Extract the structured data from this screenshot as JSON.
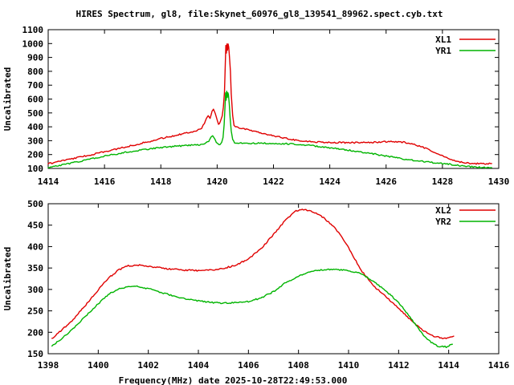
{
  "title": "HIRES Spectrum, gl8, file:Skynet_60976_gl8_139541_89962.spect.cyb.txt",
  "xlabel": "Frequency(MHz) date 2025-10-28T22:49:53.000",
  "colors": {
    "xl_line": "#e00000",
    "yr_line": "#00b400",
    "axis": "#000000",
    "background": "#ffffff"
  },
  "chart_data": [
    {
      "type": "line",
      "panel": "top",
      "ylabel": "Uncalibrated",
      "x_range": [
        1414,
        1430
      ],
      "y_range": [
        100,
        1100
      ],
      "x_ticks": [
        1414,
        1416,
        1418,
        1420,
        1422,
        1424,
        1426,
        1428,
        1430
      ],
      "y_ticks": [
        100,
        200,
        300,
        400,
        500,
        600,
        700,
        800,
        900,
        1000,
        1100
      ],
      "grid": false,
      "legend_position": "top-right-inside",
      "series": [
        {
          "name": "XL1",
          "color": "#e00000",
          "points": [
            [
              1414.0,
              133
            ],
            [
              1414.4,
              152
            ],
            [
              1414.8,
              168
            ],
            [
              1415.2,
              185
            ],
            [
              1415.6,
              202
            ],
            [
              1416,
              220
            ],
            [
              1416.5,
              243
            ],
            [
              1417,
              267
            ],
            [
              1417.5,
              290
            ],
            [
              1418,
              315
            ],
            [
              1418.5,
              338
            ],
            [
              1419,
              360
            ],
            [
              1419.3,
              375
            ],
            [
              1419.45,
              392
            ],
            [
              1419.55,
              425
            ],
            [
              1419.62,
              462
            ],
            [
              1419.68,
              477
            ],
            [
              1419.75,
              460
            ],
            [
              1419.82,
              510
            ],
            [
              1419.87,
              522
            ],
            [
              1419.93,
              495
            ],
            [
              1420.0,
              445
            ],
            [
              1420.05,
              422
            ],
            [
              1420.12,
              438
            ],
            [
              1420.18,
              475
            ],
            [
              1420.22,
              540
            ],
            [
              1420.26,
              650
            ],
            [
              1420.29,
              850
            ],
            [
              1420.31,
              985
            ],
            [
              1420.33,
              930
            ],
            [
              1420.35,
              1000
            ],
            [
              1420.37,
              955
            ],
            [
              1420.39,
              1000
            ],
            [
              1420.41,
              975
            ],
            [
              1420.44,
              900
            ],
            [
              1420.47,
              800
            ],
            [
              1420.5,
              640
            ],
            [
              1420.55,
              480
            ],
            [
              1420.6,
              410
            ],
            [
              1420.7,
              396
            ],
            [
              1421,
              385
            ],
            [
              1421.5,
              360
            ],
            [
              1422,
              335
            ],
            [
              1422.5,
              315
            ],
            [
              1423,
              298
            ],
            [
              1423.5,
              291
            ],
            [
              1424,
              288
            ],
            [
              1424.5,
              286
            ],
            [
              1425,
              286
            ],
            [
              1425.5,
              287
            ],
            [
              1426,
              293
            ],
            [
              1426.3,
              292
            ],
            [
              1426.7,
              287
            ],
            [
              1427,
              272
            ],
            [
              1427.4,
              246
            ],
            [
              1427.8,
              210
            ],
            [
              1428.2,
              172
            ],
            [
              1428.5,
              152
            ],
            [
              1428.8,
              140
            ],
            [
              1429.2,
              135
            ],
            [
              1429.75,
              135
            ]
          ]
        },
        {
          "name": "YR1",
          "color": "#00b400",
          "points": [
            [
              1414.0,
              106
            ],
            [
              1414.4,
              122
            ],
            [
              1414.8,
              138
            ],
            [
              1415.2,
              155
            ],
            [
              1415.6,
              172
            ],
            [
              1416,
              188
            ],
            [
              1416.5,
              207
            ],
            [
              1417,
              224
            ],
            [
              1417.5,
              239
            ],
            [
              1418,
              251
            ],
            [
              1418.5,
              260
            ],
            [
              1419,
              266
            ],
            [
              1419.3,
              270
            ],
            [
              1419.5,
              273
            ],
            [
              1419.6,
              280
            ],
            [
              1419.7,
              298
            ],
            [
              1419.78,
              322
            ],
            [
              1419.84,
              333
            ],
            [
              1419.9,
              318
            ],
            [
              1419.97,
              292
            ],
            [
              1420.03,
              278
            ],
            [
              1420.1,
              272
            ],
            [
              1420.16,
              288
            ],
            [
              1420.21,
              320
            ],
            [
              1420.25,
              420
            ],
            [
              1420.28,
              545
            ],
            [
              1420.3,
              640
            ],
            [
              1420.32,
              592
            ],
            [
              1420.34,
              655
            ],
            [
              1420.36,
              610
            ],
            [
              1420.38,
              650
            ],
            [
              1420.4,
              630
            ],
            [
              1420.43,
              560
            ],
            [
              1420.46,
              470
            ],
            [
              1420.5,
              370
            ],
            [
              1420.55,
              305
            ],
            [
              1420.62,
              287
            ],
            [
              1420.8,
              283
            ],
            [
              1421.2,
              282
            ],
            [
              1421.6,
              281
            ],
            [
              1422,
              280
            ],
            [
              1422.5,
              278
            ],
            [
              1423,
              272
            ],
            [
              1423.5,
              261
            ],
            [
              1424,
              248
            ],
            [
              1424.5,
              236
            ],
            [
              1425,
              222
            ],
            [
              1425.5,
              206
            ],
            [
              1426,
              189
            ],
            [
              1426.5,
              172
            ],
            [
              1427,
              158
            ],
            [
              1427.5,
              146
            ],
            [
              1428,
              135
            ],
            [
              1428.5,
              123
            ],
            [
              1429,
              112
            ],
            [
              1429.4,
              107
            ],
            [
              1429.75,
              105
            ]
          ]
        }
      ]
    },
    {
      "type": "line",
      "panel": "bottom",
      "ylabel": "Uncalibrated",
      "x_range": [
        1398,
        1416
      ],
      "y_range": [
        150,
        500
      ],
      "x_ticks": [
        1398,
        1400,
        1402,
        1404,
        1406,
        1408,
        1410,
        1412,
        1414,
        1416
      ],
      "y_ticks": [
        150,
        200,
        250,
        300,
        350,
        400,
        450,
        500
      ],
      "grid": false,
      "legend_position": "top-right-inside",
      "series": [
        {
          "name": "XL2",
          "color": "#e00000",
          "points": [
            [
              1398.15,
              186
            ],
            [
              1398.5,
              203
            ],
            [
              1399,
              230
            ],
            [
              1399.5,
              264
            ],
            [
              1400,
              299
            ],
            [
              1400.4,
              326
            ],
            [
              1400.8,
              345
            ],
            [
              1401.2,
              355
            ],
            [
              1401.6,
              357
            ],
            [
              1402,
              354
            ],
            [
              1402.5,
              350
            ],
            [
              1403,
              347
            ],
            [
              1403.5,
              345
            ],
            [
              1404,
              344
            ],
            [
              1404.5,
              345
            ],
            [
              1405,
              349
            ],
            [
              1405.5,
              357
            ],
            [
              1406,
              371
            ],
            [
              1406.5,
              395
            ],
            [
              1407,
              428
            ],
            [
              1407.5,
              463
            ],
            [
              1407.9,
              483
            ],
            [
              1408.2,
              487
            ],
            [
              1408.6,
              481
            ],
            [
              1409,
              468
            ],
            [
              1409.5,
              441
            ],
            [
              1410,
              398
            ],
            [
              1410.5,
              345
            ],
            [
              1411,
              308
            ],
            [
              1411.5,
              283
            ],
            [
              1412,
              256
            ],
            [
              1412.5,
              228
            ],
            [
              1413,
              203
            ],
            [
              1413.4,
              191
            ],
            [
              1413.8,
              185
            ],
            [
              1414.0,
              186
            ],
            [
              1414.2,
              191
            ]
          ]
        },
        {
          "name": "YR2",
          "color": "#00b400",
          "points": [
            [
              1398.15,
              168
            ],
            [
              1398.5,
              184
            ],
            [
              1399,
              208
            ],
            [
              1399.5,
              238
            ],
            [
              1400,
              267
            ],
            [
              1400.4,
              288
            ],
            [
              1400.8,
              301
            ],
            [
              1401.2,
              307
            ],
            [
              1401.6,
              307
            ],
            [
              1402,
              302
            ],
            [
              1402.5,
              293
            ],
            [
              1403,
              285
            ],
            [
              1403.5,
              278
            ],
            [
              1404,
              273
            ],
            [
              1404.5,
              270
            ],
            [
              1405,
              268
            ],
            [
              1405.5,
              269
            ],
            [
              1406,
              272
            ],
            [
              1406.5,
              280
            ],
            [
              1407,
              295
            ],
            [
              1407.5,
              316
            ],
            [
              1408,
              331
            ],
            [
              1408.5,
              341
            ],
            [
              1409,
              346
            ],
            [
              1409.4,
              347
            ],
            [
              1410,
              344
            ],
            [
              1410.5,
              337
            ],
            [
              1411,
              318
            ],
            [
              1411.5,
              296
            ],
            [
              1412,
              270
            ],
            [
              1412.5,
              232
            ],
            [
              1413,
              193
            ],
            [
              1413.3,
              176
            ],
            [
              1413.6,
              167
            ],
            [
              1413.9,
              166
            ],
            [
              1414.15,
              172
            ]
          ]
        }
      ]
    }
  ]
}
